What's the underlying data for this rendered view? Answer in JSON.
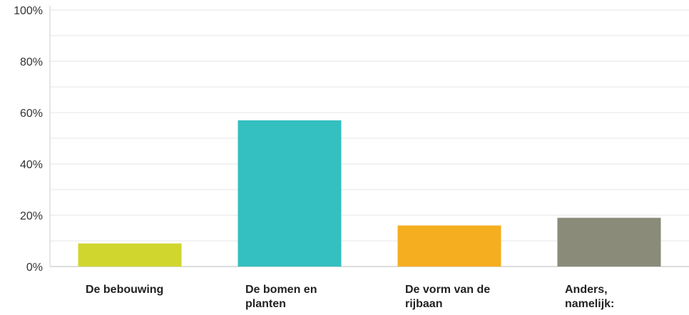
{
  "chart_data": {
    "type": "bar",
    "categories": [
      "De bebouwing",
      "De bomen en planten",
      "De vorm van de rijbaan",
      "Anders, namelijk:"
    ],
    "values": [
      9,
      57,
      16,
      19
    ],
    "colors": [
      "#d0d62e",
      "#34bfc0",
      "#f5ae1f",
      "#8a8b79"
    ],
    "ylim": [
      0,
      100
    ],
    "yticks": [
      {
        "value": 0,
        "label": "0%"
      },
      {
        "value": 20,
        "label": "20%"
      },
      {
        "value": 40,
        "label": "40%"
      },
      {
        "value": 60,
        "label": "60%"
      },
      {
        "value": 80,
        "label": "80%"
      },
      {
        "value": 100,
        "label": "100%"
      }
    ],
    "minor_yticks": [
      10,
      30,
      50,
      70,
      90
    ],
    "grid": true
  }
}
